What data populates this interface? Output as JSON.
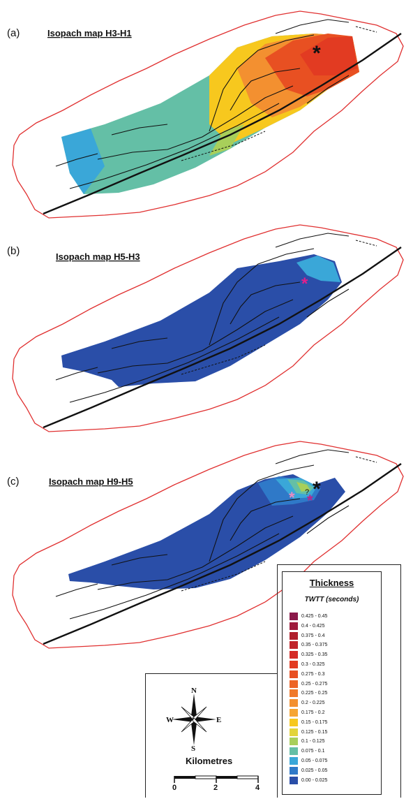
{
  "panels": [
    {
      "label": "(a)",
      "title": "Isopach map H3-H1"
    },
    {
      "label": "(b)",
      "title": "Isopach map H5-H3"
    },
    {
      "label": "(c)",
      "title": "Isopach map H9-H5"
    }
  ],
  "legend": {
    "title": "Thickness",
    "subtitle": "TWTT (seconds)",
    "classes": [
      {
        "range": "0.425 - 0.45",
        "color": "#8b1a4a"
      },
      {
        "range": "0.4 - 0.425",
        "color": "#9e1a3c"
      },
      {
        "range": "0.375 - 0.4",
        "color": "#b01f2c"
      },
      {
        "range": "0.35 - 0.375",
        "color": "#c0242a"
      },
      {
        "range": "0.325 - 0.35",
        "color": "#d42b26"
      },
      {
        "range": "0.3 - 0.325",
        "color": "#e23b22"
      },
      {
        "range": "0.275 - 0.3",
        "color": "#e85022"
      },
      {
        "range": "0.25 - 0.275",
        "color": "#ed6426"
      },
      {
        "range": "0.225 - 0.25",
        "color": "#f07a2b"
      },
      {
        "range": "0.2 - 0.225",
        "color": "#f39030"
      },
      {
        "range": "0.175 - 0.2",
        "color": "#f6a532"
      },
      {
        "range": "0.15 - 0.175",
        "color": "#f7c81e"
      },
      {
        "range": "0.125 - 0.15",
        "color": "#e3d43a"
      },
      {
        "range": "0.1 - 0.125",
        "color": "#a8cf5a"
      },
      {
        "range": "0.075 - 0.1",
        "color": "#64bfa6"
      },
      {
        "range": "0.05 - 0.075",
        "color": "#3aa7d8"
      },
      {
        "range": "0.025 - 0.05",
        "color": "#2f79c8"
      },
      {
        "range": "0.00 - 0.025",
        "color": "#2a4ea8"
      }
    ]
  },
  "compass": {
    "n": "N",
    "s": "S",
    "e": "E",
    "w": "W"
  },
  "scale": {
    "title": "Kilometres",
    "ticks": [
      "0",
      "2",
      "4"
    ]
  },
  "markers": {
    "asterisk": "*",
    "question": "?"
  }
}
